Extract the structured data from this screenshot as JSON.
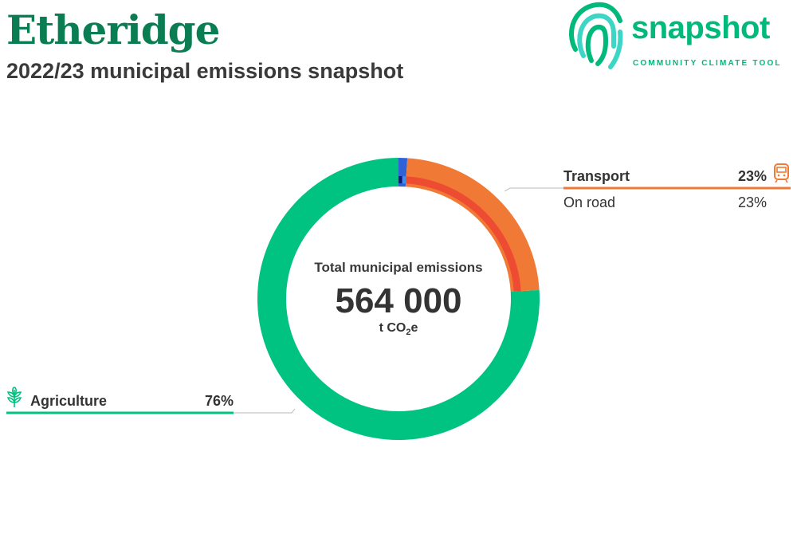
{
  "header": {
    "title": "Etheridge",
    "subtitle": "2022/23 municipal emissions snapshot"
  },
  "logo": {
    "word": "snapshot",
    "tagline": "COMMUNITY CLIMATE TOOL",
    "icon": "fingerprint-logo-icon"
  },
  "center": {
    "label": "Total municipal emissions",
    "value": "564 000",
    "unit_prefix": "t CO",
    "unit_sub": "2",
    "unit_suffix": "e"
  },
  "legend": {
    "transport": {
      "name": "Transport",
      "pct": "23%",
      "icon": "train-icon",
      "sub_name": "On road",
      "sub_pct": "23%"
    },
    "agriculture": {
      "name": "Agriculture",
      "pct": "76%",
      "icon": "wheat-icon"
    }
  },
  "colors": {
    "title": "#0a7d53",
    "brand": "#00b97a",
    "agriculture": "#00c281",
    "transport": "#f07a35",
    "on_road": "#ee4b33",
    "small_outer": "#2f62d8",
    "small_inner_dark": "#0a1f6b",
    "small_inner_light": "#3d8fe8"
  },
  "chart_data": {
    "type": "pie",
    "total": 564000,
    "unit": "t CO2e",
    "sectors": [
      {
        "name": "Agriculture",
        "percent": 76,
        "color": "#00c281"
      },
      {
        "name": "Transport",
        "percent": 23,
        "color": "#f07a35",
        "subsectors": [
          {
            "name": "On road",
            "percent": 23,
            "color": "#ee4b33"
          }
        ]
      },
      {
        "name": "",
        "percent": 1,
        "color": "#2f62d8",
        "subsectors": [
          {
            "name": "",
            "percent": 0.5,
            "color": "#0a1f6b"
          },
          {
            "name": "",
            "percent": 0.5,
            "color": "#3d8fe8"
          }
        ]
      }
    ]
  }
}
